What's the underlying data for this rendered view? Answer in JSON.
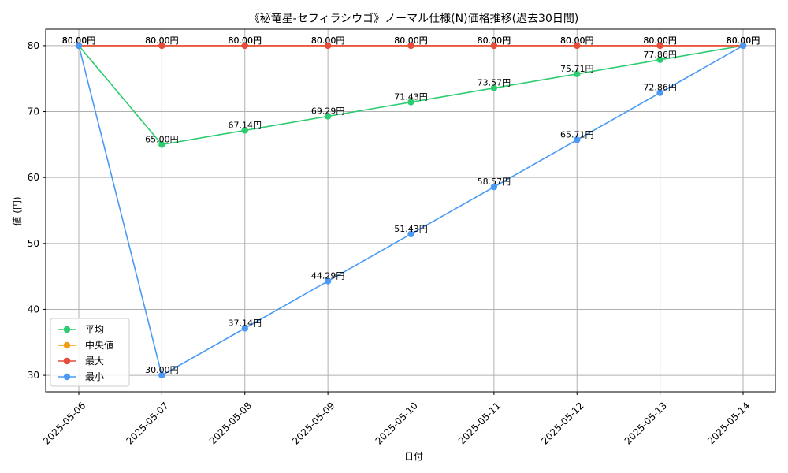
{
  "chart_data": {
    "type": "line",
    "title": "《秘竜星-セフィラシウゴ》ノーマル仕様(N)価格推移(過去30日間)",
    "xlabel": "日付",
    "ylabel": "値 (円)",
    "categories": [
      "2025-05-06",
      "2025-05-07",
      "2025-05-08",
      "2025-05-09",
      "2025-05-10",
      "2025-05-11",
      "2025-05-12",
      "2025-05-13",
      "2025-05-14"
    ],
    "ylim": [
      27.5,
      82.5
    ],
    "yticks": [
      30,
      40,
      50,
      60,
      70,
      80
    ],
    "grid": true,
    "legend_position": "bottom-left",
    "label_suffix": "円",
    "series": [
      {
        "name": "平均",
        "color": "#2ecc71",
        "values": [
          80.0,
          65.0,
          67.14,
          69.29,
          71.43,
          73.57,
          75.71,
          77.86,
          80.0
        ],
        "labels": [
          "80.00円",
          "65.00円",
          "67.14円",
          "69.29円",
          "71.43円",
          "73.57円",
          "75.71円",
          "77.86円",
          "80.00円"
        ]
      },
      {
        "name": "中央値",
        "color": "#f39c12",
        "values": [
          80.0,
          80.0,
          80.0,
          80.0,
          80.0,
          80.0,
          80.0,
          80.0,
          80.0
        ],
        "labels": [
          "80.00円",
          "80.00円",
          "80.00円",
          "80.00円",
          "80.00円",
          "80.00円",
          "80.00円",
          "80.00円",
          "80.00円"
        ]
      },
      {
        "name": "最大",
        "color": "#e74c3c",
        "values": [
          80.0,
          80.0,
          80.0,
          80.0,
          80.0,
          80.0,
          80.0,
          80.0,
          80.0
        ],
        "labels": [
          "80.00円",
          "80.00円",
          "80.00円",
          "80.00円",
          "80.00円",
          "80.00円",
          "80.00円",
          "80.00円",
          "80.00円"
        ]
      },
      {
        "name": "最小",
        "color": "#4a9af5",
        "values": [
          80.0,
          30.0,
          37.14,
          44.29,
          51.43,
          58.57,
          65.71,
          72.86,
          80.0
        ],
        "labels": [
          "80.00円",
          "30.00円",
          "37.14円",
          "44.29円",
          "51.43円",
          "58.57円",
          "65.71円",
          "72.86円",
          "80.00円"
        ]
      }
    ]
  }
}
